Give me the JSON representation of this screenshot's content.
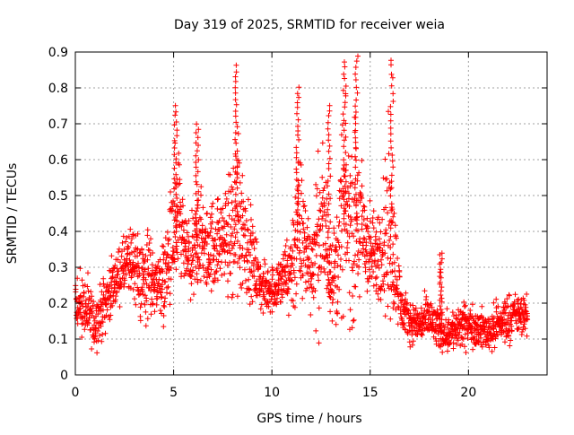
{
  "chart_data": {
    "type": "scatter",
    "title": "Day 319 of 2025, SRMTID for receiver weia",
    "xlabel": "GPS time / hours",
    "ylabel": "SRMTID / TECUs",
    "xlim": [
      0,
      24
    ],
    "ylim": [
      0,
      0.9
    ],
    "xticks": [
      0,
      5,
      10,
      15,
      20
    ],
    "yticks": [
      0,
      0.1,
      0.2,
      0.3,
      0.4,
      0.5,
      0.6,
      0.7,
      0.8,
      0.9
    ],
    "grid": true,
    "marker": "+",
    "color": "#ff0000",
    "data_range_hours": [
      0,
      23
    ],
    "envelope": {
      "x": [
        0,
        0.5,
        1,
        1.5,
        2,
        2.5,
        3,
        3.3,
        3.6,
        4,
        4.5,
        5,
        5.3,
        5.6,
        6,
        6.3,
        6.6,
        7,
        7.5,
        8,
        8.3,
        8.6,
        9,
        9.5,
        10,
        10.5,
        11,
        11.3,
        11.6,
        12,
        12.3,
        12.6,
        13,
        13.3,
        13.6,
        14,
        14.3,
        14.6,
        15,
        15.3,
        15.6,
        16,
        16.3,
        16.6,
        17,
        17.5,
        18,
        18.5,
        19,
        19.5,
        20,
        20.5,
        21,
        21.5,
        22,
        22.5,
        23
      ],
      "median": [
        0.2,
        0.18,
        0.14,
        0.2,
        0.26,
        0.3,
        0.32,
        0.26,
        0.28,
        0.26,
        0.26,
        0.38,
        0.4,
        0.34,
        0.3,
        0.4,
        0.34,
        0.36,
        0.38,
        0.4,
        0.46,
        0.4,
        0.32,
        0.24,
        0.24,
        0.26,
        0.3,
        0.4,
        0.38,
        0.3,
        0.36,
        0.42,
        0.28,
        0.3,
        0.46,
        0.4,
        0.42,
        0.4,
        0.34,
        0.32,
        0.38,
        0.4,
        0.3,
        0.18,
        0.15,
        0.14,
        0.16,
        0.12,
        0.12,
        0.13,
        0.14,
        0.13,
        0.12,
        0.14,
        0.16,
        0.17,
        0.16
      ],
      "spread": [
        0.06,
        0.07,
        0.05,
        0.06,
        0.05,
        0.06,
        0.08,
        0.08,
        0.12,
        0.06,
        0.08,
        0.14,
        0.16,
        0.06,
        0.1,
        0.12,
        0.08,
        0.1,
        0.08,
        0.16,
        0.2,
        0.12,
        0.08,
        0.05,
        0.05,
        0.06,
        0.1,
        0.18,
        0.14,
        0.08,
        0.16,
        0.18,
        0.08,
        0.12,
        0.2,
        0.18,
        0.22,
        0.14,
        0.1,
        0.08,
        0.14,
        0.22,
        0.1,
        0.05,
        0.04,
        0.04,
        0.05,
        0.04,
        0.04,
        0.05,
        0.04,
        0.04,
        0.04,
        0.05,
        0.05,
        0.04,
        0.04
      ]
    },
    "peaks": [
      {
        "x": 5.1,
        "y": 0.75
      },
      {
        "x": 6.2,
        "y": 0.7
      },
      {
        "x": 8.2,
        "y": 0.86
      },
      {
        "x": 11.3,
        "y": 0.8
      },
      {
        "x": 12.9,
        "y": 0.75
      },
      {
        "x": 13.7,
        "y": 0.87
      },
      {
        "x": 14.3,
        "y": 0.89
      },
      {
        "x": 16.1,
        "y": 0.88
      },
      {
        "x": 18.6,
        "y": 0.34
      }
    ]
  }
}
